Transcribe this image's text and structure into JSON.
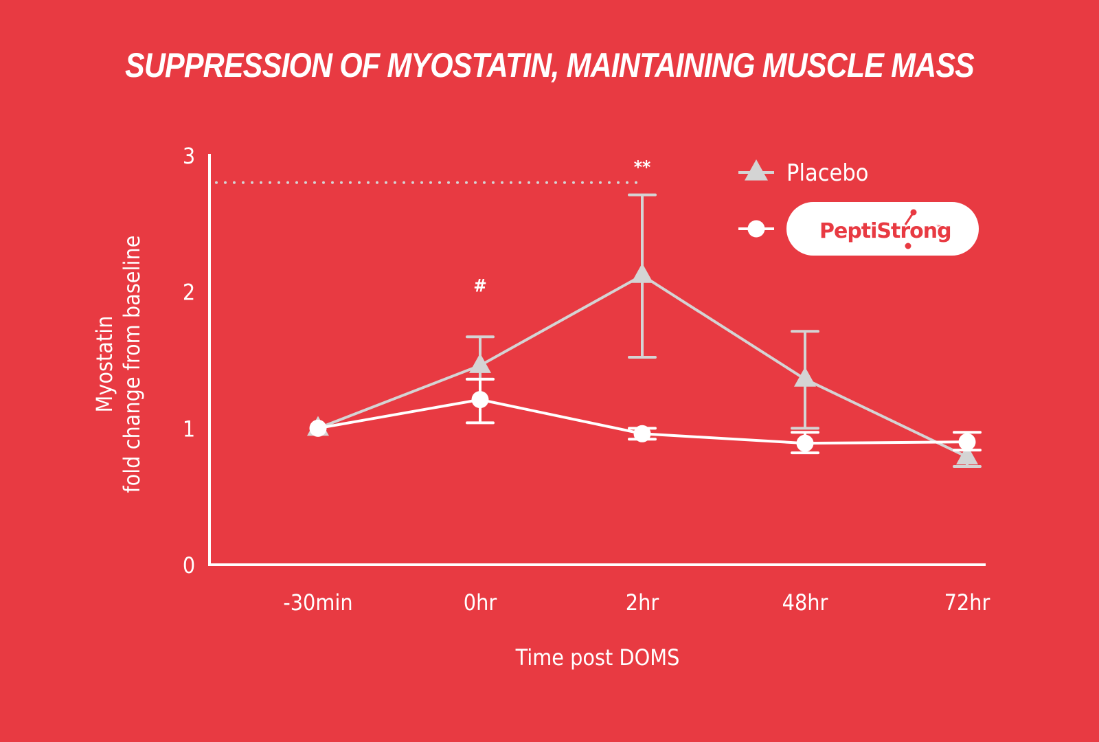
{
  "chart_data": {
    "type": "line",
    "title": "SUPPRESSION OF MYOSTATIN, MAINTAINING MUSCLE MASS",
    "xlabel": "Time post DOMS",
    "ylabel_line1": "Myostatin",
    "ylabel_line2": "fold change from baseline",
    "categories": [
      "-30min",
      "0hr",
      "2hr",
      "48hr",
      "72hr"
    ],
    "yticks": [
      "0",
      "1",
      "2",
      "3"
    ],
    "ylim": [
      0,
      3
    ],
    "grid": false,
    "reference_line": {
      "value": 2.8,
      "style": "dotted",
      "x_end_category": "2hr"
    },
    "annotations": [
      {
        "text": "#",
        "category": "0hr",
        "y": 2.0
      },
      {
        "text": "**",
        "category": "2hr",
        "y": 2.87
      }
    ],
    "legend": {
      "position": "top-right"
    },
    "series": [
      {
        "name": "Placebo",
        "marker": "triangle",
        "color": "#d4d4d4",
        "values": [
          1.0,
          1.46,
          2.12,
          1.36,
          0.79
        ],
        "error_upper": [
          null,
          1.67,
          2.71,
          1.71,
          null
        ],
        "error_lower": [
          null,
          1.36,
          1.52,
          1.0,
          0.72
        ]
      },
      {
        "name": "PeptiStrong",
        "brand_label": "PeptiStrong",
        "brand_tm": "™",
        "marker": "circle",
        "color": "#ffffff",
        "values": [
          1.0,
          1.21,
          0.96,
          0.89,
          0.9
        ],
        "error_upper": [
          null,
          1.36,
          1.0,
          0.97,
          0.97
        ],
        "error_lower": [
          null,
          1.04,
          0.92,
          0.82,
          0.84
        ]
      }
    ]
  },
  "colors": {
    "background": "#e83a42",
    "text": "#ffffff",
    "placebo": "#d4d4d4",
    "peptistrong": "#ffffff",
    "brand_red": "#e83a42"
  }
}
